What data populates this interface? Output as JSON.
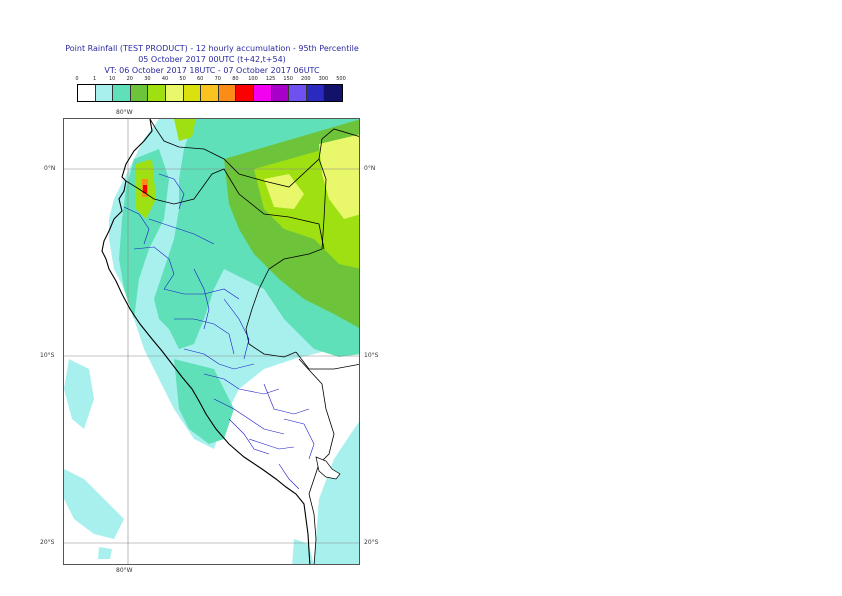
{
  "header": {
    "title_line1": "Point Rainfall (TEST PRODUCT) - 12 hourly accumulation - 95th Percentile",
    "title_line2": "05 October 2017 00UTC (t+42,t+54)",
    "title_line3": "VT: 06 October 2017 18UTC - 07 October 2017 06UTC"
  },
  "legend": {
    "ticks": [
      "0",
      "1",
      "10",
      "20",
      "30",
      "40",
      "50",
      "60",
      "70",
      "80",
      "100",
      "125",
      "150",
      "200",
      "300",
      "500"
    ],
    "colors": [
      "#ffffff",
      "#a8f0ee",
      "#5fe0b8",
      "#6dc33a",
      "#9ee012",
      "#e8f86a",
      "#dbe10f",
      "#fbc320",
      "#fb8c18",
      "#fb0000",
      "#f200f0",
      "#a800c8",
      "#7050f0",
      "#2a2ac0",
      "#12126a"
    ]
  },
  "map": {
    "lon_labels": {
      "top": "80°W",
      "bottom": "80°W"
    },
    "lat_labels": {
      "l0": "0°N",
      "r0": "0°N",
      "l10": "10°S",
      "r10": "10°S",
      "l20": "20°S",
      "r20": "20°S"
    }
  }
}
